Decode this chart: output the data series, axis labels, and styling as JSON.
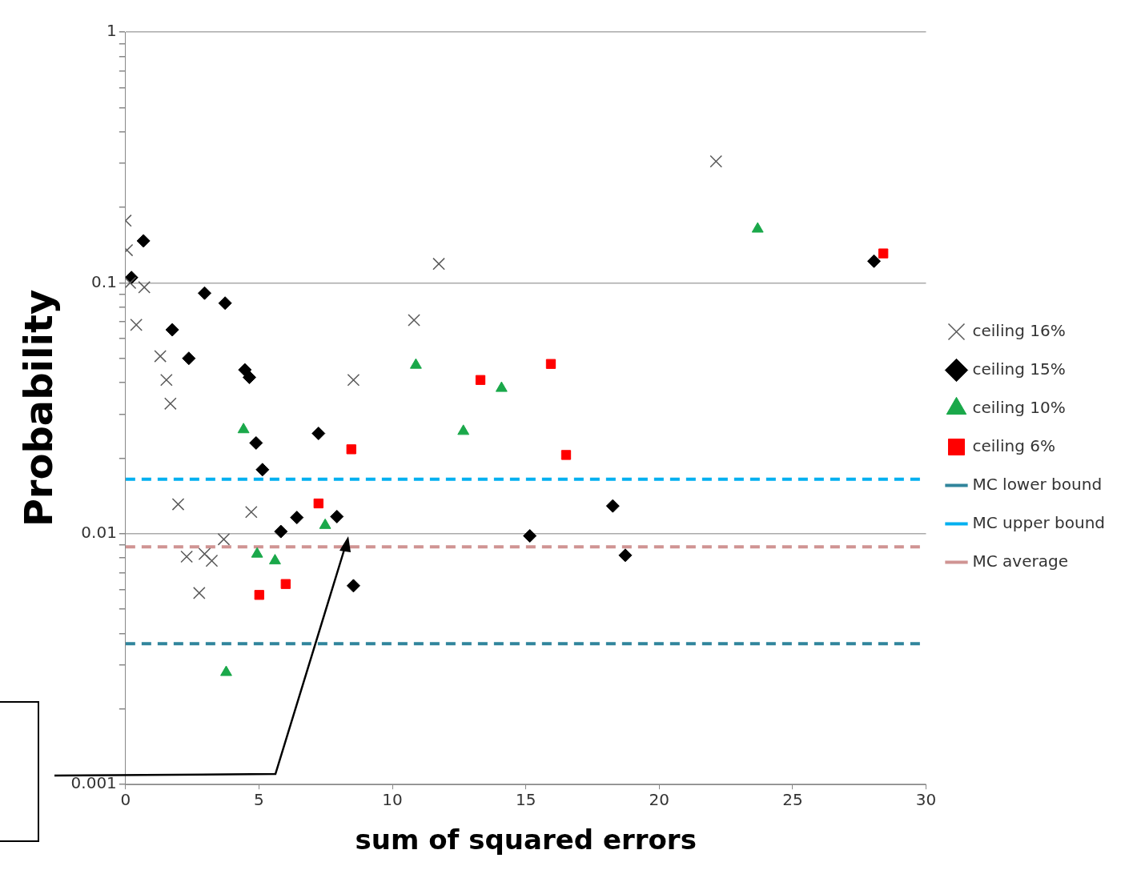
{
  "chart_data": {
    "type": "scatter",
    "xlabel": "sum of squared errors",
    "ylabel": "Probability",
    "log": "y",
    "grid": "y",
    "legend": "right",
    "xlim": [
      0,
      30
    ],
    "xticks": [
      0,
      5,
      10,
      15,
      20,
      25,
      30
    ],
    "ylim": [
      0.001,
      1
    ],
    "yticks": [
      0.001,
      {
        "value": 0.002,
        "label": null
      },
      {
        "value": 0.003,
        "label": null
      },
      {
        "value": 0.004,
        "label": null
      },
      {
        "value": 0.005,
        "label": null
      },
      {
        "value": 0.006,
        "label": null
      },
      {
        "value": 0.007,
        "label": null
      },
      {
        "value": 0.008,
        "label": null
      },
      {
        "value": 0.009,
        "label": null
      },
      0.01,
      {
        "value": 0.02,
        "label": null
      },
      {
        "value": 0.03,
        "label": null
      },
      {
        "value": 0.04,
        "label": null
      },
      {
        "value": 0.05,
        "label": null
      },
      {
        "value": 0.06,
        "label": null
      },
      {
        "value": 0.07,
        "label": null
      },
      {
        "value": 0.08,
        "label": null
      },
      {
        "value": 0.09,
        "label": null
      },
      0.1,
      {
        "value": 0.2,
        "label": null
      },
      {
        "value": 0.3,
        "label": null
      },
      {
        "value": 0.4,
        "label": null
      },
      {
        "value": 0.5,
        "label": null
      },
      {
        "value": 0.6,
        "label": null
      },
      {
        "value": 0.7,
        "label": null
      },
      {
        "value": 0.8,
        "label": null
      },
      {
        "value": 0.9,
        "label": null
      },
      1
    ],
    "series": [
      {
        "name": "ceiling 16%",
        "color": "#595959",
        "marker": "cross",
        "x": [
          0,
          0.05,
          0.17,
          0.4,
          0.7,
          1.3,
          1.53,
          1.68,
          1.97,
          2.29,
          2.96,
          2.76,
          3.23,
          3.68,
          4.71,
          8.54,
          10.81,
          11.74,
          22.13
        ],
        "values": [
          0.177,
          0.135,
          0.1,
          0.068,
          0.096,
          0.051,
          0.041,
          0.033,
          0.0131,
          0.0081,
          0.0083,
          0.0058,
          0.0078,
          0.0095,
          0.0122,
          0.041,
          0.071,
          0.119,
          0.305
        ]
      },
      {
        "name": "ceiling 15%",
        "color": "#000000",
        "marker": "diamond",
        "x": [
          0.67,
          0.22,
          2.96,
          3.73,
          1.75,
          2.37,
          4.47,
          4.64,
          4.89,
          5.13,
          7.23,
          5.82,
          6.42,
          7.92,
          8.54,
          15.15,
          18.26,
          18.73,
          28.05
        ],
        "values": [
          0.147,
          0.105,
          0.091,
          0.083,
          0.065,
          0.05,
          0.045,
          0.042,
          0.023,
          0.018,
          0.0251,
          0.0102,
          0.0116,
          0.0117,
          0.0062,
          0.0098,
          0.0129,
          0.0082,
          0.122
        ]
      },
      {
        "name": "ceiling 10%",
        "color": "#1aa84a",
        "marker": "triangle",
        "x": [
          4.42,
          4.93,
          5.6,
          3.77,
          7.48,
          10.88,
          14.09,
          12.66,
          23.69
        ],
        "values": [
          0.026,
          0.0083,
          0.0078,
          0.0028,
          0.0108,
          0.047,
          0.038,
          0.0256,
          0.164
        ]
      },
      {
        "name": "ceiling 6%",
        "color": "#ff0000",
        "marker": "square",
        "x": [
          5.01,
          6.0,
          7.23,
          8.46,
          13.3,
          15.94,
          16.51,
          28.4
        ],
        "values": [
          0.0057,
          0.0063,
          0.0132,
          0.0217,
          0.041,
          0.0475,
          0.0206,
          0.131
        ]
      }
    ],
    "ref_lines": [
      {
        "axis": "y",
        "value": 0.00364,
        "label": "MC lower bound",
        "color": "#31859c",
        "line_style": "dashed"
      },
      {
        "axis": "y",
        "value": 0.0165,
        "label": "MC upper bound",
        "color": "#00b0f0",
        "line_style": "dashed"
      },
      {
        "axis": "y",
        "value": 0.00886,
        "label": "MC average",
        "color": "#d09493",
        "line_style": "dashed"
      }
    ]
  }
}
